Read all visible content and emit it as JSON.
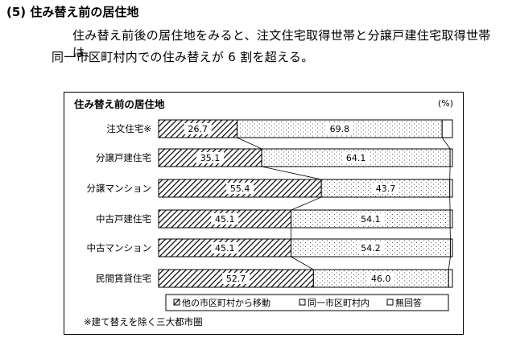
{
  "heading": "(5) 住み替え前の居住地",
  "paragraph_line1": "住み替え前後の居住地をみると、注文住宅取得世帯と分譲戸建住宅取得世帯は、",
  "paragraph_line2": "同一市区町村内での住み替えが 6 割を超える。",
  "chart_data": {
    "type": "bar",
    "orientation": "horizontal",
    "stacked": "100%",
    "title": "住み替え前の居住地",
    "unit_label": "(%)",
    "categories": [
      "注文住宅※",
      "分譲戸建住宅",
      "分譲マンション",
      "中古戸建住宅",
      "中古マンション",
      "民間賃貸住宅"
    ],
    "series": [
      {
        "name": "他の市区町村から移動",
        "values": [
          26.7,
          35.1,
          55.4,
          45.1,
          45.1,
          52.7
        ],
        "labels": [
          "26.7",
          "35.1",
          "55.4",
          "45.1",
          "45.1",
          "52.7"
        ],
        "pattern": "diagonal-hatch"
      },
      {
        "name": "同一市区町村内",
        "values": [
          69.8,
          64.1,
          43.7,
          54.1,
          54.2,
          46.0
        ],
        "labels": [
          "69.8",
          "64.1",
          "43.7",
          "54.1",
          "54.2",
          "46.0"
        ],
        "pattern": "dots"
      },
      {
        "name": "無回答",
        "values": [
          3.5,
          0.8,
          0.9,
          0.8,
          0.7,
          1.3
        ],
        "pattern": "white"
      }
    ],
    "legend": "bottom",
    "footnote": "※建て替えを除く三大都市圏"
  }
}
